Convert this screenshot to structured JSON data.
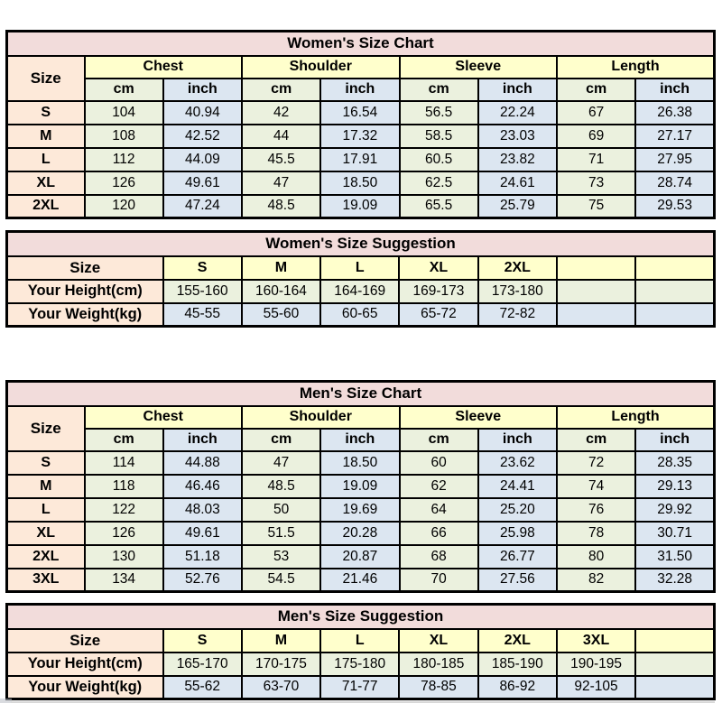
{
  "palette": {
    "title_pink": "#F2DCDB",
    "header_yellow": "#FFFFCC",
    "label_peach": "#FDE9D9",
    "cm_green": "#EBF1DE",
    "inch_blue": "#DCE6F1",
    "unit_text_red": "#C00000",
    "border_black": "#000000",
    "background_white": "#FFFFFF"
  },
  "women_chart": {
    "title": "Women's Size Chart",
    "size_header": "Size",
    "groups": [
      "Chest",
      "Shoulder",
      "Sleeve",
      "Length"
    ],
    "unit_headers": [
      "cm",
      "inch"
    ],
    "rows": [
      {
        "size": "S",
        "values": [
          "104",
          "40.94",
          "42",
          "16.54",
          "56.5",
          "22.24",
          "67",
          "26.38"
        ]
      },
      {
        "size": "M",
        "values": [
          "108",
          "42.52",
          "44",
          "17.32",
          "58.5",
          "23.03",
          "69",
          "27.17"
        ]
      },
      {
        "size": "L",
        "values": [
          "112",
          "44.09",
          "45.5",
          "17.91",
          "60.5",
          "23.82",
          "71",
          "27.95"
        ]
      },
      {
        "size": "XL",
        "values": [
          "126",
          "49.61",
          "47",
          "18.50",
          "62.5",
          "24.61",
          "73",
          "28.74"
        ]
      },
      {
        "size": "2XL",
        "values": [
          "120",
          "47.24",
          "48.5",
          "19.09",
          "65.5",
          "25.79",
          "75",
          "29.53"
        ]
      }
    ]
  },
  "women_suggestion": {
    "title": "Women's Size Suggestion",
    "size_header": "Size",
    "columns": [
      "S",
      "M",
      "L",
      "XL",
      "2XL",
      "",
      ""
    ],
    "height_label": "Your Height(cm)",
    "height_values": [
      "155-160",
      "160-164",
      "164-169",
      "169-173",
      "173-180",
      "",
      ""
    ],
    "weight_label": "Your Weight(kg)",
    "weight_values": [
      "45-55",
      "55-60",
      "60-65",
      "65-72",
      "72-82",
      "",
      ""
    ]
  },
  "men_chart": {
    "title": "Men's Size Chart",
    "size_header": "Size",
    "groups": [
      "Chest",
      "Shoulder",
      "Sleeve",
      "Length"
    ],
    "unit_headers": [
      "cm",
      "inch"
    ],
    "rows": [
      {
        "size": "S",
        "values": [
          "114",
          "44.88",
          "47",
          "18.50",
          "60",
          "23.62",
          "72",
          "28.35"
        ]
      },
      {
        "size": "M",
        "values": [
          "118",
          "46.46",
          "48.5",
          "19.09",
          "62",
          "24.41",
          "74",
          "29.13"
        ]
      },
      {
        "size": "L",
        "values": [
          "122",
          "48.03",
          "50",
          "19.69",
          "64",
          "25.20",
          "76",
          "29.92"
        ]
      },
      {
        "size": "XL",
        "values": [
          "126",
          "49.61",
          "51.5",
          "20.28",
          "66",
          "25.98",
          "78",
          "30.71"
        ]
      },
      {
        "size": "2XL",
        "values": [
          "130",
          "51.18",
          "53",
          "20.87",
          "68",
          "26.77",
          "80",
          "31.50"
        ]
      },
      {
        "size": "3XL",
        "values": [
          "134",
          "52.76",
          "54.5",
          "21.46",
          "70",
          "27.56",
          "82",
          "32.28"
        ]
      }
    ]
  },
  "men_suggestion": {
    "title": "Men's Size Suggestion",
    "size_header": "Size",
    "columns": [
      "S",
      "M",
      "L",
      "XL",
      "2XL",
      "3XL",
      ""
    ],
    "height_label": "Your Height(cm)",
    "height_values": [
      "165-170",
      "170-175",
      "175-180",
      "180-185",
      "185-190",
      "190-195",
      ""
    ],
    "weight_label": "Your Weight(kg)",
    "weight_values": [
      "55-62",
      "63-70",
      "71-77",
      "78-85",
      "86-92",
      "92-105",
      ""
    ]
  }
}
